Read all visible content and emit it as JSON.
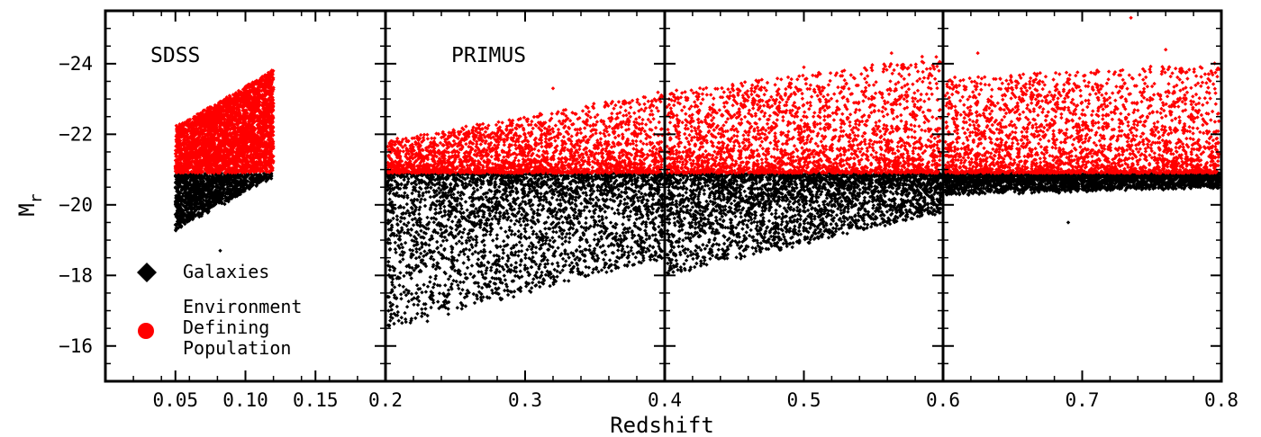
{
  "chart_data": {
    "type": "scatter",
    "xlabel": "Redshift",
    "ylabel": "M",
    "ylabel_subscript": "r",
    "ylim": [
      -15,
      -25.5
    ],
    "yticks": [
      -24,
      -22,
      -20,
      -18,
      -16
    ],
    "ytick_labels": [
      "−24",
      "−22",
      "−20",
      "−18",
      "−16"
    ],
    "panels": [
      {
        "id": "sdss",
        "title": "SDSS",
        "xlim": [
          0.0,
          0.2
        ],
        "xticks": [
          0.05,
          0.1,
          0.15
        ],
        "xtick_labels": [
          "0.05",
          "0.10",
          "0.15"
        ],
        "population": {
          "z_range": [
            0.05,
            0.12
          ],
          "density": 4500,
          "edp_cut": -20.9,
          "bright_limit_at_zmin": -22.2,
          "bright_limit_at_zmax": -23.8,
          "faint_limit_at_zmin": -19.3,
          "faint_limit_at_zmax": -20.8,
          "outliers": [
            [
              0.082,
              -18.7
            ]
          ]
        }
      },
      {
        "id": "primus-1",
        "title": "PRIMUS",
        "xlim": [
          0.2,
          0.4
        ],
        "xticks": [
          0.2,
          0.3,
          0.4
        ],
        "xtick_labels": [
          "0.2",
          "0.3",
          "0.4"
        ],
        "population": {
          "z_range": [
            0.2,
            0.4
          ],
          "density": 5200,
          "edp_cut": -20.9,
          "bright_limit_at_zmin": -21.8,
          "bright_limit_at_zmax": -23.2,
          "faint_limit_at_zmin": -16.5,
          "faint_limit_at_zmax": -18.5,
          "outliers": [
            [
              0.23,
              -16.7
            ],
            [
              0.245,
              -16.9
            ],
            [
              0.32,
              -23.3
            ]
          ]
        }
      },
      {
        "id": "primus-2",
        "title": "",
        "xlim": [
          0.4,
          0.6
        ],
        "xticks": [
          0.4,
          0.5,
          0.6
        ],
        "xtick_labels": [
          "0.4",
          "0.5",
          "0.6"
        ],
        "population": {
          "z_range": [
            0.4,
            0.6
          ],
          "density": 5200,
          "edp_cut": -20.9,
          "bright_limit_at_zmin": -23.2,
          "bright_limit_at_zmax": -24.2,
          "faint_limit_at_zmin": -18.0,
          "faint_limit_at_zmax": -19.8,
          "outliers": [
            [
              0.563,
              -24.3
            ],
            [
              0.585,
              -24.2
            ],
            [
              0.5,
              -23.9
            ]
          ]
        }
      },
      {
        "id": "primus-3",
        "title": "",
        "xlim": [
          0.6,
          0.8
        ],
        "xticks": [
          0.6,
          0.7,
          0.8
        ],
        "xtick_labels": [
          "0.6",
          "0.7",
          "0.8"
        ],
        "population": {
          "z_range": [
            0.6,
            0.8
          ],
          "density": 5200,
          "edp_cut": -20.9,
          "bright_limit_at_zmin": -23.6,
          "bright_limit_at_zmax": -24.0,
          "faint_limit_at_zmin": -20.3,
          "faint_limit_at_zmax": -20.5,
          "outliers": [
            [
              0.735,
              -25.3
            ],
            [
              0.76,
              -24.4
            ],
            [
              0.625,
              -24.3
            ],
            [
              0.69,
              -19.5
            ]
          ]
        }
      }
    ],
    "series": [
      {
        "name": "Galaxies",
        "color": "#000000",
        "marker": "diamond"
      },
      {
        "name": "Environment Defining Population",
        "color": "#ff0000",
        "marker": "circle"
      }
    ],
    "legend": {
      "placement": "lower-left",
      "entries": [
        {
          "lines": [
            "Galaxies"
          ],
          "color": "#000000",
          "marker": "diamond-icon"
        },
        {
          "lines": [
            "Environment",
            "Defining",
            "Population"
          ],
          "color": "#ff0000",
          "marker": "circle-icon"
        }
      ]
    },
    "grid": false
  }
}
